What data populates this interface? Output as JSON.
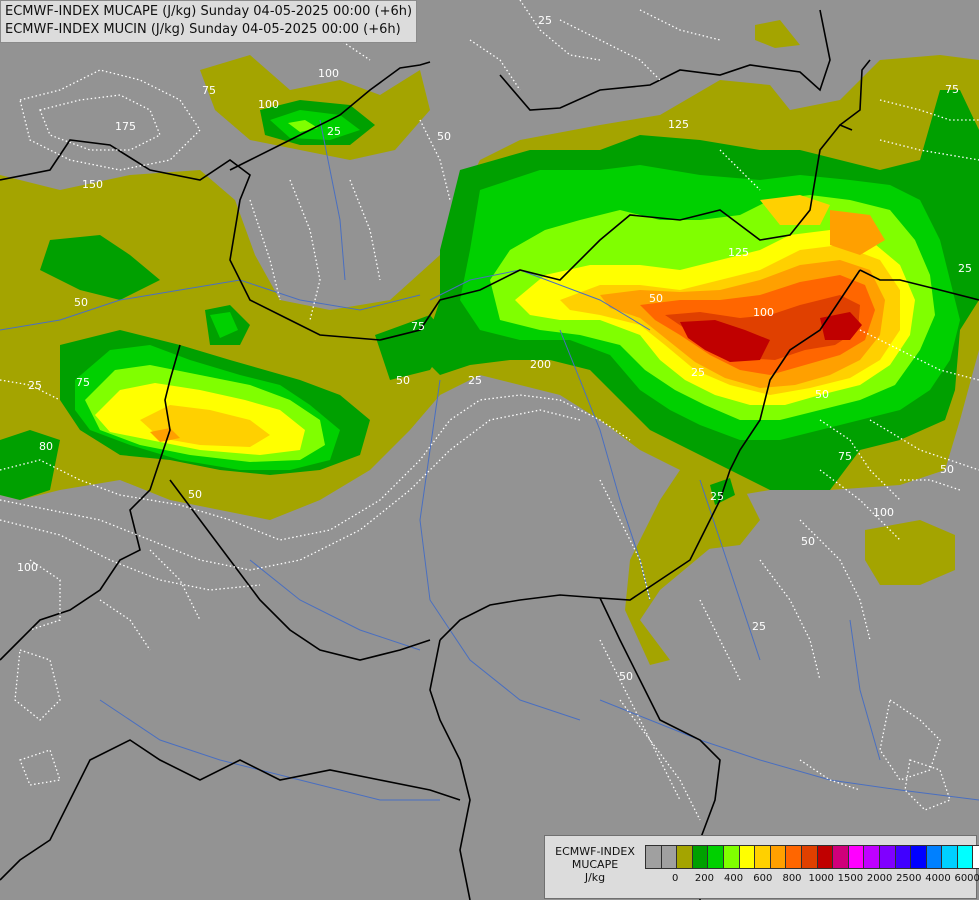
{
  "title_lines": [
    "ECMWF-INDEX MUCAPE (J/kg) Sunday 04-05-2025 00:00 (+6h)",
    "ECMWF-INDEX MUCIN (J/kg) Sunday 04-05-2025 00:00 (+6h)"
  ],
  "legend": {
    "lines": [
      "ECMWF-INDEX",
      "MUCAPE",
      "J/kg"
    ],
    "colors": [
      "#a0a0a0",
      "#a0a0a0",
      "#a4a400",
      "#00a000",
      "#00d000",
      "#80ff00",
      "#ffff00",
      "#ffd000",
      "#ffa000",
      "#ff6600",
      "#e04000",
      "#c00000",
      "#d0007a",
      "#ff00ff",
      "#c000ff",
      "#8000ff",
      "#4000ff",
      "#0000ff",
      "#0080ff",
      "#00d0ff",
      "#00ffff",
      "#ffffff"
    ],
    "ticks": [
      "0",
      "200",
      "400",
      "600",
      "800",
      "1000",
      "1500",
      "2000",
      "2500",
      "4000",
      "6000"
    ]
  },
  "mucin_labels": [
    "25",
    "50",
    "75",
    "100",
    "125",
    "150",
    "175",
    "200"
  ],
  "colors": {
    "background": "#939393",
    "cape_100": "#a4a400",
    "cape_200": "#00a000",
    "cape_300": "#00d000",
    "cape_400": "#80ff00",
    "cape_500": "#ffff00",
    "cape_600": "#ffd000",
    "cape_700": "#ffa000",
    "cape_800": "#ff6600",
    "cape_900": "#e04000",
    "cape_1000": "#c00000",
    "border": "#000000",
    "river": "#4a6fc0",
    "mucin_contour": "#ffffff"
  }
}
